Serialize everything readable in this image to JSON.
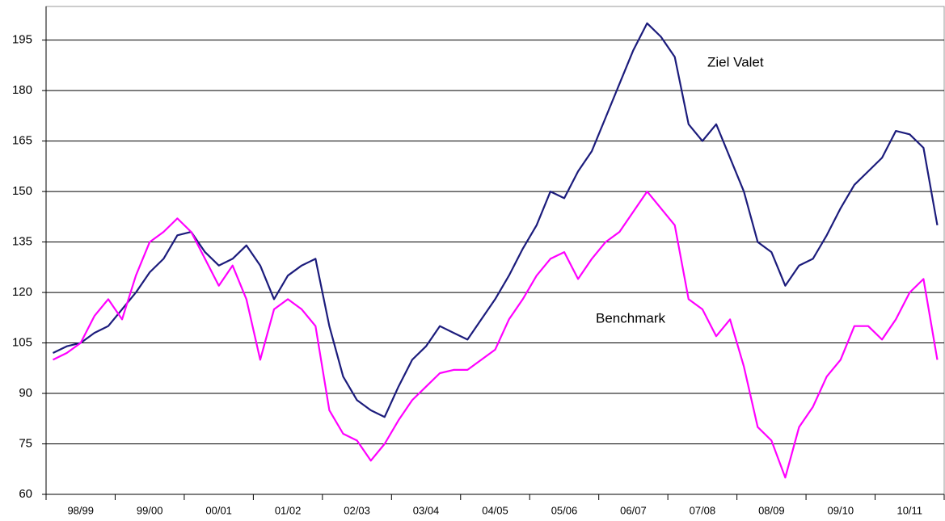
{
  "chart_data": {
    "type": "line",
    "categories": [
      null,
      null,
      "98/99",
      null,
      null,
      null,
      null,
      "99/00",
      null,
      null,
      null,
      null,
      "00/01",
      null,
      null,
      null,
      null,
      "01/02",
      null,
      null,
      null,
      null,
      "02/03",
      null,
      null,
      null,
      null,
      "03/04",
      null,
      null,
      null,
      null,
      "04/05",
      null,
      null,
      null,
      null,
      "05/06",
      null,
      null,
      null,
      null,
      "06/07",
      null,
      null,
      null,
      null,
      "07/08",
      null,
      null,
      null,
      null,
      "08/09",
      null,
      null,
      null,
      null,
      "09/10",
      null,
      null,
      null,
      null,
      "10/11",
      null,
      null
    ],
    "series": [
      {
        "name": "Ziel Valet",
        "color": "#1c1c7c",
        "values": [
          102,
          104,
          105,
          108,
          110,
          115,
          120,
          126,
          130,
          137,
          138,
          132,
          128,
          130,
          134,
          128,
          118,
          125,
          128,
          130,
          110,
          95,
          88,
          85,
          83,
          92,
          100,
          104,
          110,
          108,
          106,
          112,
          118,
          125,
          133,
          140,
          150,
          148,
          156,
          162,
          172,
          182,
          192,
          200,
          196,
          190,
          170,
          165,
          170,
          160,
          150,
          135,
          132,
          122,
          128,
          130,
          137,
          145,
          152,
          156,
          160,
          168,
          167,
          163,
          140
        ]
      },
      {
        "name": "Benchmark",
        "color": "#ff00ff",
        "values": [
          100,
          102,
          105,
          113,
          118,
          112,
          125,
          135,
          138,
          142,
          138,
          130,
          122,
          128,
          118,
          100,
          115,
          118,
          115,
          110,
          85,
          78,
          76,
          70,
          75,
          82,
          88,
          92,
          96,
          97,
          97,
          100,
          103,
          112,
          118,
          125,
          130,
          132,
          124,
          130,
          135,
          138,
          144,
          150,
          145,
          140,
          118,
          115,
          107,
          112,
          98,
          80,
          76,
          65,
          80,
          86,
          95,
          100,
          110,
          110,
          106,
          112,
          120,
          124,
          100
        ]
      }
    ],
    "annotations": [
      "Ziel Valet",
      "Benchmark"
    ],
    "ylim": [
      60,
      205
    ],
    "yticks": [
      60,
      75,
      90,
      105,
      120,
      135,
      150,
      165,
      180,
      195
    ],
    "grid": true
  }
}
